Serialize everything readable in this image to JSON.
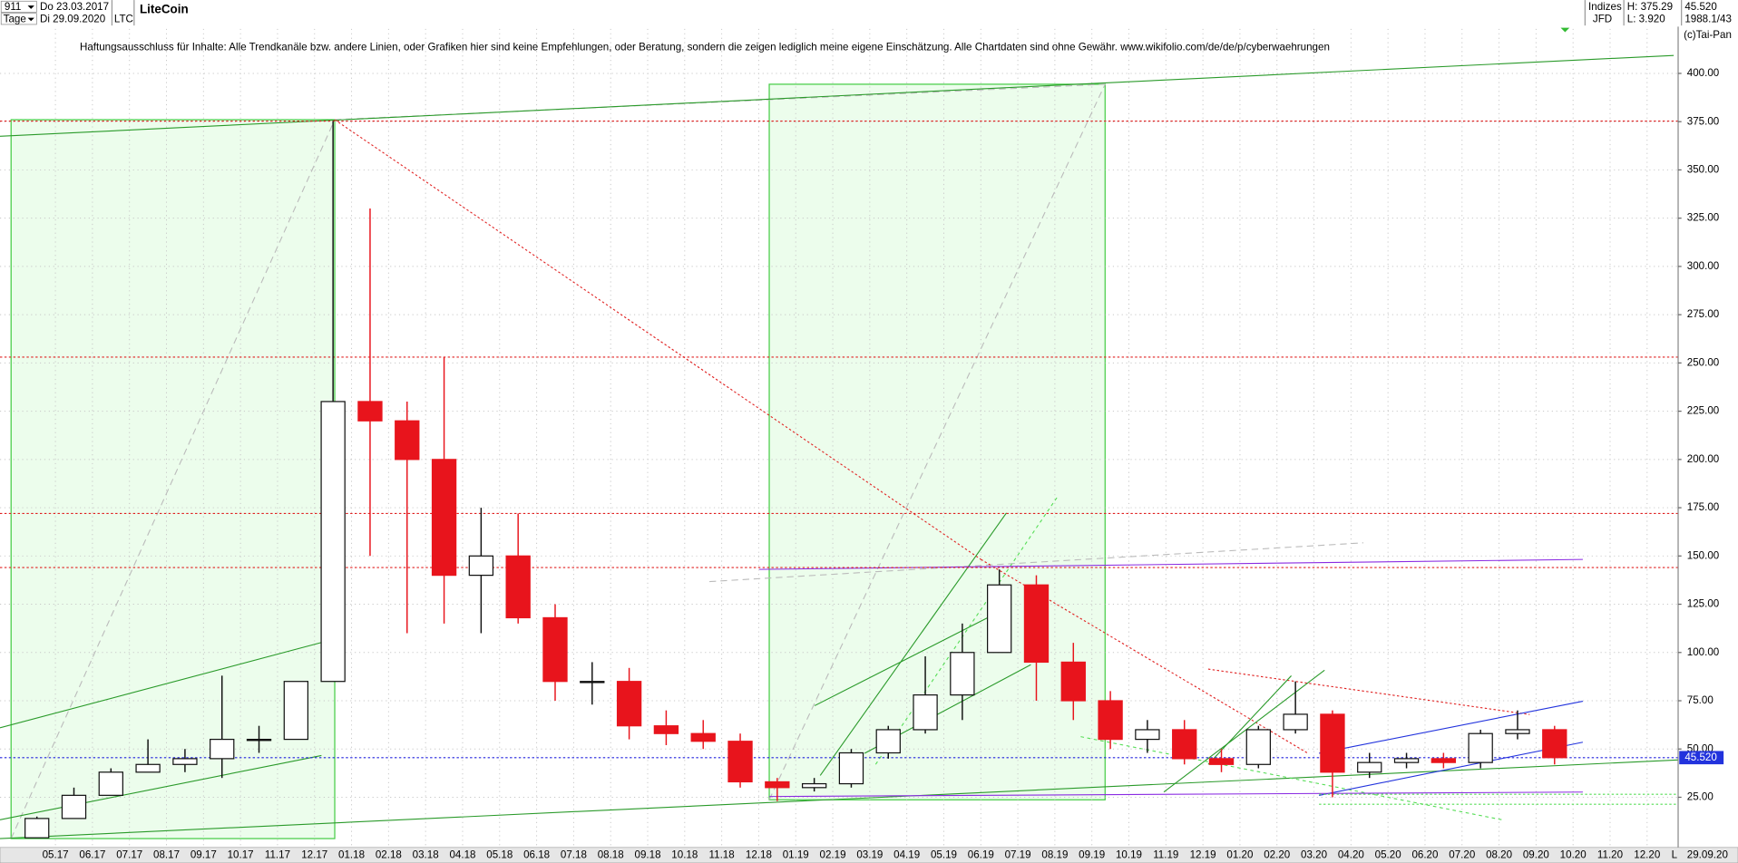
{
  "chart_data": {
    "type": "candlestick",
    "title": "LiteCoin",
    "symbol": "LTC",
    "categories": [
      null,
      "05.17",
      "06.17",
      "07.17",
      "08.17",
      "09.17",
      "10.17",
      "11.17",
      "12.17",
      "01.18",
      "02.18",
      "03.18",
      "04.18",
      "05.18",
      "06.18",
      "07.18",
      "08.18",
      "09.18",
      "10.18",
      "11.18",
      "12.18",
      "01.19",
      "02.19",
      "03.19",
      "04.19",
      "05.19",
      "06.19",
      "07.19",
      "08.19",
      "09.19",
      "10.19",
      "11.19",
      "12.19",
      "01.20",
      "02.20",
      "03.20",
      "04.20",
      "05.20",
      "06.20",
      "07.20",
      "08.20",
      "09.20",
      "10.20",
      "11.20",
      "12.20"
    ],
    "open": [
      4,
      14,
      26,
      38,
      42,
      45,
      55,
      55,
      85,
      230,
      220,
      200,
      140,
      150,
      118,
      85,
      85,
      62,
      58,
      54,
      33,
      30,
      32,
      48,
      60,
      78,
      100,
      135,
      95,
      75,
      55,
      60,
      45,
      42,
      60,
      68,
      38,
      43,
      45,
      43,
      58,
      60,
      null,
      null,
      null
    ],
    "high": [
      15,
      30,
      40,
      55,
      50,
      88,
      62,
      85,
      375.29,
      330,
      230,
      253,
      175,
      172,
      125,
      95,
      92,
      70,
      65,
      58,
      35,
      35,
      50,
      62,
      98,
      115,
      143,
      140,
      105,
      80,
      65,
      65,
      50,
      62,
      85,
      70,
      48,
      48,
      48,
      60,
      70,
      62,
      null,
      null,
      null
    ],
    "low": [
      3.92,
      14,
      26,
      38,
      38,
      35,
      48,
      55,
      85,
      150,
      110,
      115,
      110,
      115,
      75,
      73,
      55,
      52,
      50,
      30,
      23,
      28,
      30,
      45,
      58,
      65,
      100,
      75,
      65,
      50,
      48,
      42,
      38,
      40,
      58,
      25,
      35,
      40,
      40,
      40,
      55,
      42,
      null,
      null,
      null
    ],
    "close": [
      14,
      26,
      38,
      42,
      45,
      55,
      55,
      85,
      230,
      220,
      200,
      140,
      150,
      118,
      85,
      85,
      62,
      58,
      54,
      33,
      30,
      32,
      48,
      60,
      78,
      100,
      135,
      95,
      75,
      55,
      60,
      45,
      42,
      60,
      68,
      38,
      43,
      45,
      43,
      58,
      60,
      45.52,
      null,
      null,
      null
    ],
    "up_color": "#111111",
    "down_color": "#e8141c",
    "ylim": [
      -1,
      438
    ],
    "yticks": [
      {
        "value": 25,
        "label": "25.00"
      },
      {
        "value": 50,
        "label": "50.00"
      },
      {
        "value": 75,
        "label": "75.00"
      },
      {
        "value": 100,
        "label": "100.00"
      },
      {
        "value": 125,
        "label": "125.00"
      },
      {
        "value": 150,
        "label": "150.00"
      },
      {
        "value": 175,
        "label": "175.00"
      },
      {
        "value": 200,
        "label": "200.00"
      },
      {
        "value": 225,
        "label": "225.00"
      },
      {
        "value": 250,
        "label": "250.00"
      },
      {
        "value": 275,
        "label": "275.00"
      },
      {
        "value": 300,
        "label": "300.00"
      },
      {
        "value": 325,
        "label": "325.00"
      },
      {
        "value": 350,
        "label": "350.00"
      },
      {
        "value": 375,
        "label": "375.00"
      },
      {
        "value": 400,
        "label": "400.00"
      }
    ],
    "grid": true,
    "levels": [
      {
        "value": 375.29,
        "color": "#e02020"
      },
      {
        "value": 253,
        "color": "#e02020"
      },
      {
        "value": 172,
        "color": "#e02020"
      },
      {
        "value": 144,
        "color": "#e02020"
      },
      {
        "value": 45.52,
        "color": "#2222dd"
      }
    ],
    "last_price": {
      "value": 45.52,
      "label": "45.520"
    }
  },
  "header": {
    "bars": "911",
    "from": "Do 23.03.2017",
    "period": "Tage",
    "to": "Di 29.09.2020",
    "group": "Indizes",
    "source": "JFD",
    "high": "H: 375.29",
    "low": "L: 3.920",
    "version": "1988.1/43",
    "copyright": "(c)Tai-Pan",
    "disclaimer": "Haftungsausschluss für Inhalte: Alle Trendkanäle bzw. andere Linien, oder Grafiken hier sind keine Empfehlungen, oder Beratung, sondern die zeigen lediglich meine eigene Einschätzung. Alle Chartdaten sind ohne Gewähr.  www.wikifolio.com/de/de/p/cyberwaehrungen",
    "end_date": "29.09.20",
    "scale": "L"
  }
}
